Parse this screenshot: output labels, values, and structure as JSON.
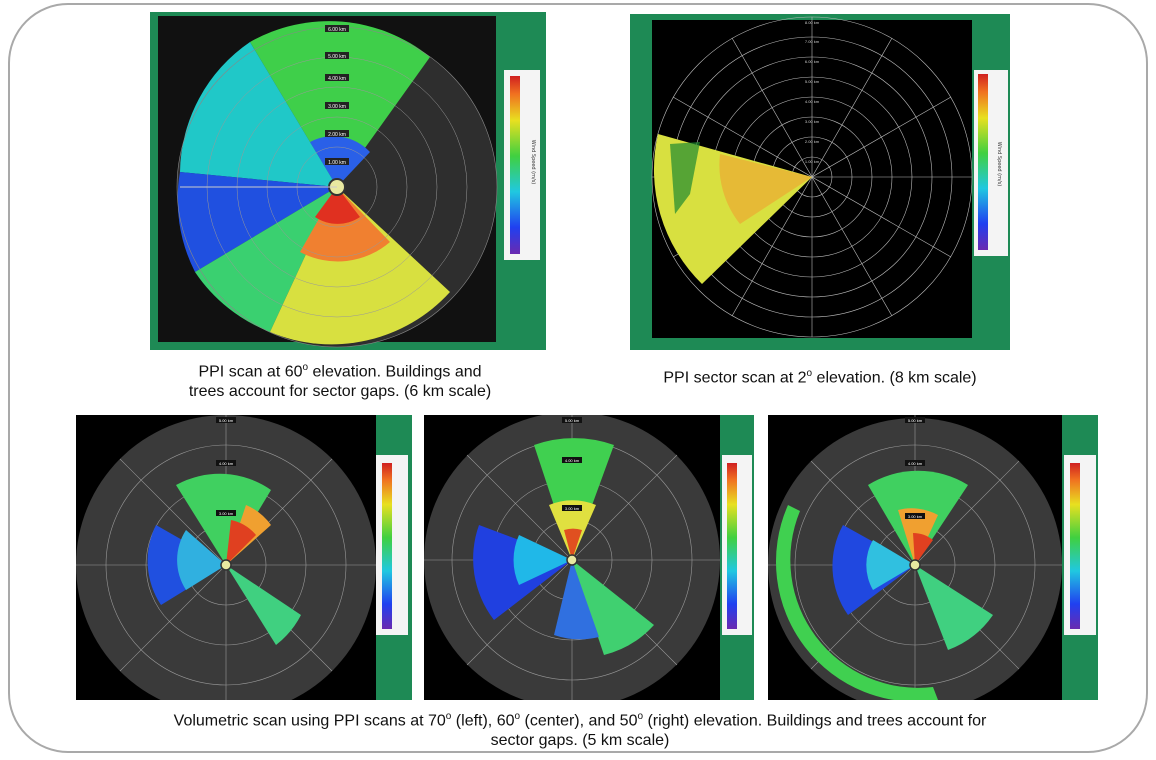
{
  "panels": {
    "top_left": {
      "range_labels": [
        "6.00 km",
        "5.00 km",
        "4.00 km",
        "3.00 km",
        "2.00 km",
        "1.00 km"
      ],
      "colorbar_title": "Wind Speed (m/s)",
      "caption_line1_a": "PPI scan at 60",
      "caption_line1_sup": "o",
      "caption_line1_b": " elevation. Buildings and",
      "caption_line2": "trees account for sector gaps. (6 km scale)"
    },
    "top_right": {
      "range_labels": [
        "8.00 km",
        "7.00 km",
        "6.00 km",
        "5.00 km",
        "4.00 km",
        "3.00 km",
        "2.00 km",
        "1.00 km"
      ],
      "colorbar_title": "Wind Speed (m/s)",
      "caption_a": "PPI sector scan at 2",
      "caption_sup": "o",
      "caption_b": " elevation. (8 km scale)"
    },
    "bottom_left": {
      "range_labels": [
        "5.00 km",
        "4.00 km",
        "3.00 km"
      ]
    },
    "bottom_center": {
      "range_labels": [
        "5.00 km",
        "4.00 km",
        "3.00 km"
      ]
    },
    "bottom_right": {
      "range_labels": [
        "5.00 km",
        "4.00 km",
        "3.00 km"
      ]
    }
  },
  "bottom_caption": {
    "a": "Volumetric scan using PPI scans at 70",
    "sup1": "o",
    "b": " (left), 60",
    "sup2": "o",
    "c": " (center), and 50",
    "sup3": "o",
    "d": " (right) elevation. Buildings and trees account for",
    "line2": "sector gaps. (5 km scale)"
  },
  "colors": {
    "panel_green": "#1e8a55",
    "background_black": "#000000",
    "dark_gray_disk": "#3a3a3a"
  }
}
